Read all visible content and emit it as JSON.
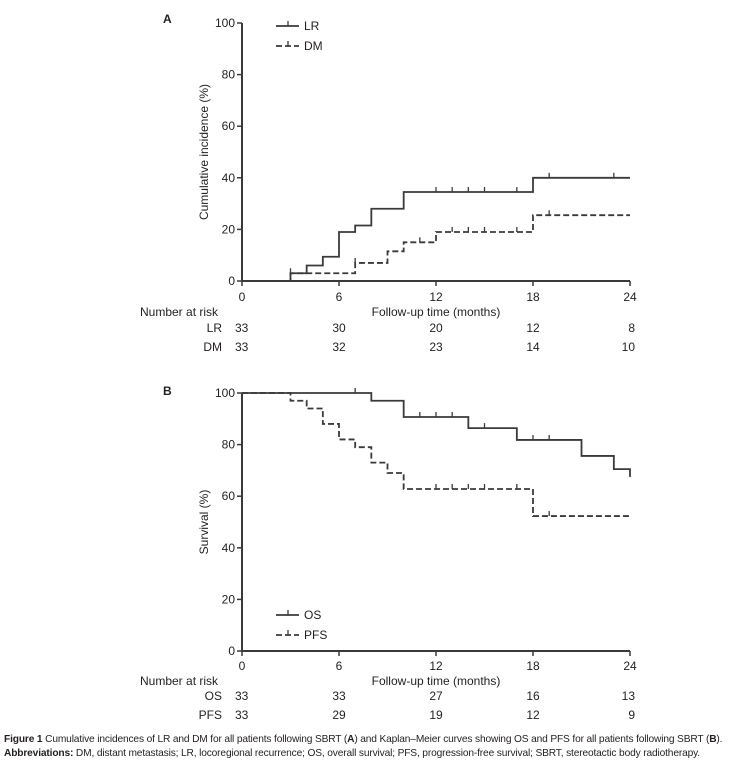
{
  "chart_data": [
    {
      "panel": "A",
      "type": "line",
      "subtype": "step",
      "title": "",
      "xlabel": "Follow-up time (months)",
      "ylabel": "Cumulative incidence (%)",
      "xlim": [
        0,
        24
      ],
      "ylim": [
        0,
        100
      ],
      "xticks": [
        "0",
        "6",
        "12",
        "18",
        "24"
      ],
      "yticks": [
        "0",
        "20",
        "40",
        "60",
        "80",
        "100"
      ],
      "grid": false,
      "legend_position": "top-left",
      "series": [
        {
          "name": "LR",
          "style": "solid",
          "steps": [
            [
              0,
              0
            ],
            [
              3,
              3
            ],
            [
              4,
              6
            ],
            [
              5,
              9.4
            ],
            [
              6,
              19
            ],
            [
              7,
              21.5
            ],
            [
              8,
              28
            ],
            [
              10,
              34.5
            ],
            [
              18,
              40
            ],
            [
              24,
              40
            ]
          ],
          "censored": [
            [
              12,
              34.5
            ],
            [
              13,
              34.5
            ],
            [
              14,
              34.5
            ],
            [
              15,
              34.5
            ],
            [
              17,
              34.5
            ],
            [
              19,
              40
            ],
            [
              23,
              40
            ]
          ]
        },
        {
          "name": "DM",
          "style": "dashed",
          "steps": [
            [
              0,
              0
            ],
            [
              3,
              3
            ],
            [
              7,
              7
            ],
            [
              9,
              11.5
            ],
            [
              10,
              15
            ],
            [
              12,
              19
            ],
            [
              18,
              25.5
            ],
            [
              24,
              25.5
            ]
          ],
          "censored": [
            [
              3,
              3
            ],
            [
              7,
              7
            ],
            [
              11,
              15
            ],
            [
              13,
              19
            ],
            [
              14,
              19
            ],
            [
              15,
              19
            ],
            [
              17,
              19
            ],
            [
              19,
              25.5
            ]
          ]
        }
      ],
      "risk_table": {
        "header": "Number at risk",
        "times": [
          "0",
          "6",
          "12",
          "18",
          "24"
        ],
        "rows": [
          {
            "label": "LR",
            "values": [
              "33",
              "30",
              "20",
              "12",
              "8"
            ]
          },
          {
            "label": "DM",
            "values": [
              "33",
              "32",
              "23",
              "14",
              "10"
            ]
          }
        ]
      }
    },
    {
      "panel": "B",
      "type": "line",
      "subtype": "step",
      "title": "",
      "xlabel": "Follow-up time (months)",
      "ylabel": "Survival (%)",
      "xlim": [
        0,
        24
      ],
      "ylim": [
        0,
        100
      ],
      "xticks": [
        "0",
        "6",
        "12",
        "18",
        "24"
      ],
      "yticks": [
        "0",
        "20",
        "40",
        "60",
        "80",
        "100"
      ],
      "grid": false,
      "legend_position": "bottom-left",
      "series": [
        {
          "name": "OS",
          "style": "solid",
          "steps": [
            [
              0,
              100
            ],
            [
              8,
              97
            ],
            [
              10,
              90.7
            ],
            [
              14,
              86.4
            ],
            [
              17,
              81.8
            ],
            [
              21,
              75.6
            ],
            [
              23,
              70.5
            ],
            [
              24,
              67.5
            ]
          ],
          "censored": [
            [
              7,
              100
            ],
            [
              11,
              90.7
            ],
            [
              12,
              90.7
            ],
            [
              13,
              90.7
            ],
            [
              15,
              86.4
            ],
            [
              18,
              81.8
            ],
            [
              19,
              81.8
            ]
          ]
        },
        {
          "name": "PFS",
          "style": "dashed",
          "steps": [
            [
              0,
              100
            ],
            [
              3,
              97
            ],
            [
              4,
              94
            ],
            [
              5,
              88
            ],
            [
              6,
              82
            ],
            [
              7,
              79
            ],
            [
              8,
              73
            ],
            [
              9,
              69
            ],
            [
              10,
              62.8
            ],
            [
              18,
              52.3
            ],
            [
              24,
              52.3
            ]
          ],
          "censored": [
            [
              12,
              62.8
            ],
            [
              13,
              62.8
            ],
            [
              14,
              62.8
            ],
            [
              15,
              62.8
            ],
            [
              17,
              62.8
            ],
            [
              19,
              52.3
            ]
          ]
        }
      ],
      "risk_table": {
        "header": "Number at risk",
        "times": [
          "0",
          "6",
          "12",
          "18",
          "24"
        ],
        "rows": [
          {
            "label": "OS",
            "values": [
              "33",
              "33",
              "27",
              "16",
              "13"
            ]
          },
          {
            "label": "PFS",
            "values": [
              "33",
              "29",
              "19",
              "12",
              "9"
            ]
          }
        ]
      }
    }
  ],
  "caption": {
    "figure_label": "Figure 1",
    "text_part1": " Cumulative incidences of LR and DM for all patients following SBRT (",
    "ref_a": "A",
    "text_part2": ") and Kaplan–Meier curves showing OS and PFS for all patients following SBRT (",
    "ref_b": "B",
    "text_part3": ").",
    "abbrev_label": "Abbreviations:",
    "abbrev_text": " DM, distant metastasis; LR, locoregional recurrence; OS, overall survival; PFS, progression-free survival; SBRT, stereotactic body radiotherapy."
  },
  "colors": {
    "line": "#3a3a3a",
    "text": "#231f20"
  }
}
